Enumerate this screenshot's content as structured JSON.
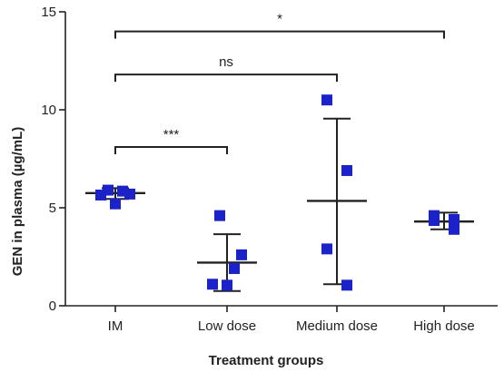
{
  "chart_data": {
    "type": "scatter",
    "xlabel": "Treatment groups",
    "ylabel": "GEN in plasma (µg/mL)",
    "ylim": [
      0,
      15
    ],
    "yticks": [
      0,
      5,
      10,
      15
    ],
    "categories": [
      "IM",
      "Low dose",
      "Medium dose",
      "High dose"
    ],
    "groups": [
      {
        "name": "IM",
        "points": [
          5.9,
          5.7,
          5.85,
          5.65,
          5.2
        ],
        "mean": 5.75,
        "err_low": 5.45,
        "err_high": 6.0
      },
      {
        "name": "Low dose",
        "points": [
          4.6,
          2.6,
          1.9,
          1.1,
          1.05
        ],
        "mean": 2.2,
        "err_low": 0.75,
        "err_high": 3.65
      },
      {
        "name": "Medium dose",
        "points": [
          10.5,
          6.9,
          2.9,
          1.05
        ],
        "mean": 5.35,
        "err_low": 1.1,
        "err_high": 9.55
      },
      {
        "name": "High dose",
        "points": [
          4.6,
          4.4,
          4.35,
          3.9
        ],
        "mean": 4.3,
        "err_low": 3.9,
        "err_high": 4.75
      }
    ],
    "point_color": "#1a22c8",
    "significance": [
      {
        "from": 0,
        "to": 1,
        "label": "***",
        "y": 8.1
      },
      {
        "from": 0,
        "to": 2,
        "label": "ns",
        "y": 11.8
      },
      {
        "from": 0,
        "to": 3,
        "label": "*",
        "y": 14.0
      }
    ],
    "grid": false,
    "legend": "none"
  }
}
